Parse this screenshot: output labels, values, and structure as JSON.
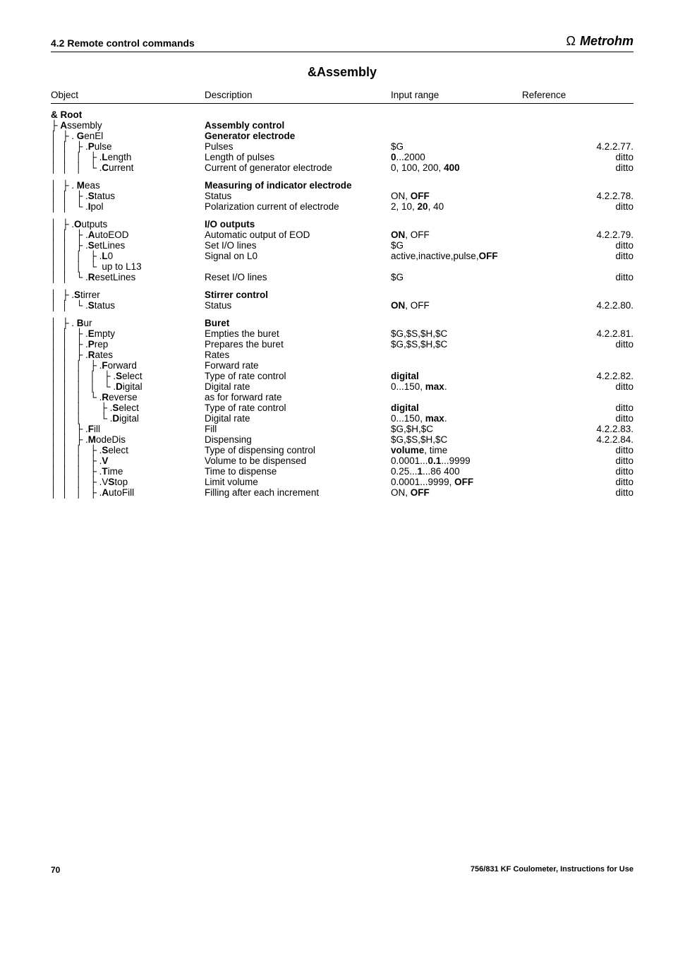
{
  "header": {
    "section": "4.2 Remote control commands",
    "brand": "Metrohm"
  },
  "title": "&Assembly",
  "columns": {
    "object": "Object",
    "description": "Description",
    "input": "Input range",
    "reference": "Reference"
  },
  "root_label": "& Root",
  "rows": [
    {
      "obj_indent": "├ ",
      "obj_bold_idx": 0,
      "obj_label": "Assembly",
      "desc_bold": true,
      "desc": "Assembly control"
    },
    {
      "obj_indent": "│  ├ . ",
      "obj_bold_idx": 0,
      "obj_label": "GenEl",
      "desc_bold": true,
      "desc": "Generator electrode"
    },
    {
      "obj_indent": "│  │   ├ ",
      "obj_prefix": ".",
      "obj_bold_idx": 0,
      "obj_label": "Pulse",
      "desc": "Pulses",
      "inp": "$G",
      "ref": "4.2.2.77."
    },
    {
      "obj_indent": "│  │   │   ├ ",
      "obj_prefix": ".",
      "obj_bold_idx": 0,
      "obj_label": "Length",
      "desc": "Length of pulses",
      "inp_html": "<b>0</b>...2000",
      "ref": "ditto"
    },
    {
      "obj_indent": "│  │   │   └ ",
      "obj_prefix": ".",
      "obj_bold_idx": 0,
      "obj_label": "Current",
      "desc": "Current of generator electrode",
      "inp_html": "0, 100, 200, <b>400</b>",
      "ref": "ditto"
    },
    {
      "gap": true
    },
    {
      "obj_indent": "│  ├ . ",
      "obj_bold_idx": 0,
      "obj_label": "Meas",
      "desc_bold": true,
      "desc": "Measuring of indicator electrode"
    },
    {
      "obj_indent": "│  │   ├ ",
      "obj_prefix": ".",
      "obj_bold_idx": 0,
      "obj_label": "Status",
      "desc": "Status",
      "inp_html": "ON, <b>OFF</b>",
      "ref": "4.2.2.78."
    },
    {
      "obj_indent": "│  │   └ ",
      "obj_prefix": ".",
      "obj_bold_idx": 0,
      "obj_label": "Ipol",
      "desc": "Polarization current of electrode",
      "inp_html": "2, 10, <b>20</b>, 40",
      "ref": "ditto"
    },
    {
      "gap": true
    },
    {
      "obj_indent": "│  ├ ",
      "obj_prefix": ".",
      "obj_bold_idx": 0,
      "obj_label": "Outputs",
      "desc_bold": true,
      "desc": "I/O outputs"
    },
    {
      "obj_indent": "│  │   ├ ",
      "obj_prefix": ".",
      "obj_bold_idx": 0,
      "obj_label": "AutoEOD",
      "desc": "Automatic output of EOD",
      "inp_html": "<b>ON</b>, OFF",
      "ref": "4.2.2.79."
    },
    {
      "obj_indent": "│  │   ├ ",
      "obj_prefix": ".",
      "obj_bold_idx": 0,
      "obj_label": "SetLines",
      "desc": "Set I/O lines",
      "inp": "$G",
      "ref": "ditto"
    },
    {
      "obj_indent": "│  │   │   ├ ",
      "obj_prefix": ".",
      "obj_bold_idx": 0,
      "obj_label": "L0",
      "desc": "Signal on L0",
      "inp_html": "active,inactive,pulse,<b>OFF</b>",
      "ref": "ditto"
    },
    {
      "obj_indent": "│  │   │   └  up to L13",
      "obj_label": ""
    },
    {
      "obj_indent": "│  │   └ ",
      "obj_prefix": ".",
      "obj_bold_idx": 0,
      "obj_label": "ResetLines",
      "desc": "Reset I/O lines",
      "inp": "$G",
      "ref": "ditto"
    },
    {
      "gap": true
    },
    {
      "obj_indent": "│  ├ ",
      "obj_prefix": ".",
      "obj_bold_idx": 0,
      "obj_label": "Stirrer",
      "desc_bold": true,
      "desc": "Stirrer control"
    },
    {
      "obj_indent": "│  │   └ ",
      "obj_prefix": ".",
      "obj_bold_idx": 0,
      "obj_label": "Status",
      "desc": "Status",
      "inp_html": "<b>ON</b>, OFF",
      "ref": "4.2.2.80."
    },
    {
      "gap": true
    },
    {
      "obj_indent": "│  ├ . ",
      "obj_bold_idx": 0,
      "obj_label": "Bur",
      "desc_bold": true,
      "desc": "Buret"
    },
    {
      "obj_indent": "│  │   ├ ",
      "obj_prefix": ".",
      "obj_bold_idx": 0,
      "obj_label": "Empty",
      "desc": "Empties the buret",
      "inp": "$G,$S,$H,$C",
      "ref": "4.2.2.81."
    },
    {
      "obj_indent": "│  │   ├ ",
      "obj_prefix": ".",
      "obj_bold_idx": 0,
      "obj_label": "Prep",
      "desc": "Prepares the buret",
      "inp": "$G,$S,$H,$C",
      "ref": "ditto"
    },
    {
      "obj_indent": "│  │   ├ ",
      "obj_prefix": ".",
      "obj_bold_idx": 0,
      "obj_label": "Rates",
      "desc": "Rates"
    },
    {
      "obj_indent": "│  │   │   ├ ",
      "obj_prefix": ".",
      "obj_bold_idx": 0,
      "obj_label": "Forward",
      "desc": "Forward rate"
    },
    {
      "obj_indent": "│  │   │   │   ├ ",
      "obj_prefix": ".",
      "obj_bold_idx": 0,
      "obj_label": "Select",
      "desc": "Type of rate control",
      "inp_html": "<b>digital</b>",
      "ref": "4.2.2.82."
    },
    {
      "obj_indent": "│  │   │   │   └ ",
      "obj_prefix": ".",
      "obj_bold_idx": 0,
      "obj_label": "Digital",
      "desc": "Digital rate",
      "inp_html": "0...150, <b>max</b>.",
      "ref": "ditto"
    },
    {
      "obj_indent": "│  │   │   └ ",
      "obj_prefix": ".",
      "obj_bold_idx": 0,
      "obj_label": "Reverse",
      "desc": "as for forward rate"
    },
    {
      "obj_indent": "│  │   │       ├ ",
      "obj_prefix": ".",
      "obj_bold_idx": 0,
      "obj_label": "Select",
      "desc": "Type of rate control",
      "inp_html": "<b>digital</b>",
      "ref": "ditto"
    },
    {
      "obj_indent": "│  │   │       └ ",
      "obj_prefix": ".",
      "obj_bold_idx": 0,
      "obj_label": "Digital",
      "desc": "Digital rate",
      "inp_html": "0...150, <b>max</b>.",
      "ref": "ditto"
    },
    {
      "obj_indent": "│  │   ├ ",
      "obj_prefix": ".",
      "obj_bold_idx": 0,
      "obj_label": "Fill",
      "desc": "Fill",
      "inp": "$G,$H,$C",
      "ref": "4.2.2.83."
    },
    {
      "obj_indent": "│  │   ├ ",
      "obj_prefix": ".",
      "obj_bold_idx": 0,
      "obj_label": "ModeDis",
      "desc": "Dispensing",
      "inp": "$G,$S,$H,$C",
      "ref": "4.2.2.84."
    },
    {
      "obj_indent": "│  │   │   ├ ",
      "obj_prefix": ".",
      "obj_bold_idx": 0,
      "obj_label": "Select",
      "desc": "Type of dispensing control",
      "inp_html": "<b>volume</b>, time",
      "ref": "ditto"
    },
    {
      "obj_indent": "│  │   │   ├ ",
      "obj_prefix": ".",
      "obj_bold_idx": 0,
      "obj_label": "V",
      "desc": "Volume to be dispensed",
      "inp_html": "0.0001...<b>0.1</b>...9999",
      "ref": "ditto"
    },
    {
      "obj_indent": "│  │   │   ├ ",
      "obj_prefix": ".",
      "obj_bold_idx": 0,
      "obj_label": "Time",
      "desc": "Time to dispense",
      "inp_html": "0.25...<b>1</b>...86 400",
      "ref": "ditto"
    },
    {
      "obj_indent": "│  │   │   ├ ",
      "obj_prefix": ".",
      "obj_bold_idx": 1,
      "obj_label": "VStop",
      "desc": "Limit volume",
      "inp_html": "0.0001...9999, <b>OFF</b>",
      "ref": "ditto"
    },
    {
      "obj_indent": "│  │   │   ├ ",
      "obj_prefix": ".",
      "obj_bold_idx": 0,
      "obj_label": "AutoFill",
      "desc": "Filling after each increment",
      "inp_html": "ON, <b>OFF</b>",
      "ref": "ditto"
    }
  ],
  "footer": {
    "page": "70",
    "doc": "756/831 KF Coulometer, Instructions for Use"
  }
}
